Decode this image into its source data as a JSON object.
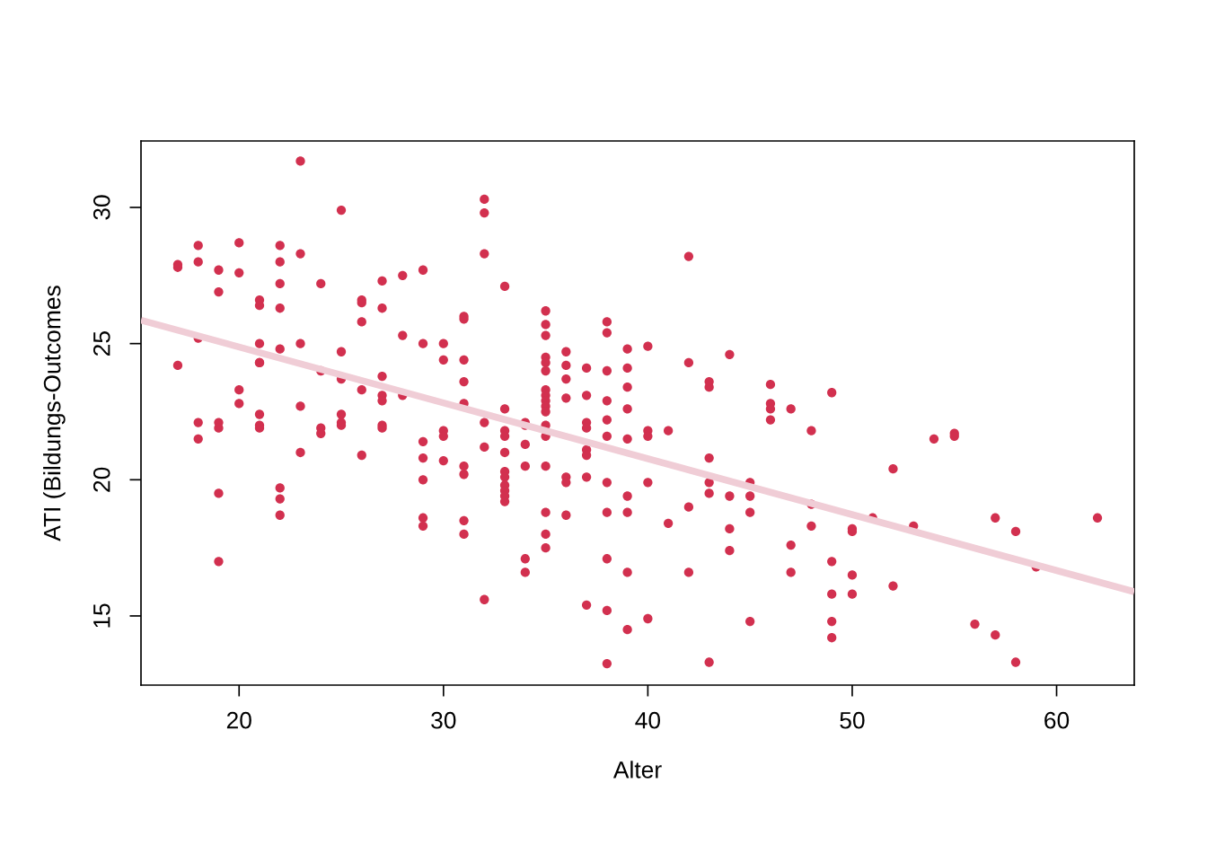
{
  "chart_data": {
    "type": "scatter",
    "xlabel": "Alter",
    "ylabel": "ATI (Bildungs-Outcomes",
    "xlim": [
      15.2,
      63.8
    ],
    "ylim": [
      12.46,
      32.44
    ],
    "xticks": [
      20,
      30,
      40,
      50,
      60
    ],
    "yticks": [
      15,
      20,
      25,
      30
    ],
    "grid": false,
    "marker": "circle",
    "series": [
      {
        "color": "#d2304f",
        "x": [
          17,
          17,
          17,
          18,
          18,
          18,
          18,
          18,
          19,
          19,
          19,
          19,
          19,
          19,
          20,
          20,
          20,
          20,
          21,
          21,
          21,
          21,
          21,
          21,
          21,
          21,
          22,
          22,
          22,
          22,
          22,
          22,
          22,
          22,
          23,
          23,
          23,
          23,
          23,
          24,
          24,
          24,
          24,
          25,
          25,
          25,
          25,
          25,
          25,
          26,
          26,
          26,
          26,
          26,
          27,
          27,
          27,
          27,
          27,
          27,
          27,
          28,
          28,
          28,
          29,
          29,
          29,
          29,
          29,
          29,
          29,
          30,
          30,
          30,
          30,
          30,
          31,
          31,
          31,
          31,
          31,
          31,
          31,
          31,
          31,
          32,
          32,
          32,
          32,
          32,
          32,
          33,
          33,
          33,
          33,
          33,
          33,
          33,
          33,
          33,
          33,
          33,
          34,
          34,
          34,
          34,
          34,
          34,
          35,
          35,
          35,
          35,
          35,
          35,
          35,
          35,
          35,
          35,
          35,
          35,
          35,
          35,
          35,
          35,
          35,
          36,
          36,
          36,
          36,
          36,
          36,
          36,
          37,
          37,
          37,
          37,
          37,
          37,
          37,
          37,
          38,
          38,
          38,
          38,
          38,
          38,
          38,
          38,
          38,
          38,
          38,
          39,
          39,
          39,
          39,
          39,
          39,
          39,
          39,
          39,
          40,
          40,
          40,
          40,
          40,
          41,
          41,
          42,
          42,
          42,
          42,
          43,
          43,
          43,
          43,
          43,
          43,
          44,
          44,
          44,
          44,
          45,
          45,
          45,
          45,
          46,
          46,
          46,
          46,
          47,
          47,
          47,
          48,
          48,
          48,
          49,
          49,
          49,
          49,
          49,
          50,
          50,
          50,
          50,
          51,
          52,
          52,
          53,
          54,
          55,
          55,
          56,
          57,
          57,
          58,
          58,
          59,
          62
        ],
        "values": [
          27.9,
          27.8,
          24.2,
          28.6,
          28.0,
          25.2,
          22.1,
          21.5,
          27.7,
          26.9,
          22.1,
          21.9,
          19.5,
          17.0,
          28.7,
          27.6,
          23.3,
          22.8,
          26.6,
          26.4,
          25.0,
          24.3,
          24.3,
          22.4,
          22.0,
          21.9,
          28.6,
          28.0,
          27.2,
          26.3,
          24.8,
          19.7,
          19.3,
          18.7,
          31.7,
          28.3,
          25.0,
          22.7,
          21.0,
          27.2,
          24.0,
          21.9,
          21.7,
          29.9,
          24.7,
          23.7,
          22.4,
          22.1,
          22.0,
          26.6,
          26.5,
          25.8,
          23.3,
          20.9,
          27.3,
          26.3,
          23.8,
          23.1,
          22.9,
          22.0,
          21.9,
          27.5,
          25.3,
          23.1,
          27.7,
          25.0,
          21.4,
          20.8,
          20.0,
          18.6,
          18.3,
          25.0,
          24.4,
          21.8,
          21.6,
          20.7,
          26.0,
          25.9,
          24.4,
          23.6,
          22.8,
          20.5,
          20.2,
          18.5,
          18.0,
          30.3,
          29.8,
          28.3,
          22.1,
          21.2,
          15.6,
          27.1,
          22.6,
          21.8,
          21.6,
          21.0,
          20.3,
          20.1,
          19.8,
          19.6,
          19.4,
          19.2,
          22.1,
          22.0,
          21.3,
          20.5,
          17.1,
          16.6,
          26.2,
          25.7,
          25.3,
          24.5,
          24.3,
          24.0,
          23.3,
          23.1,
          22.9,
          22.7,
          22.5,
          22.0,
          21.6,
          20.5,
          18.8,
          18.0,
          17.5,
          24.7,
          24.2,
          23.7,
          23.0,
          20.1,
          19.9,
          18.7,
          24.1,
          23.1,
          22.1,
          21.9,
          21.1,
          20.9,
          20.1,
          15.4,
          25.8,
          25.4,
          24.0,
          22.9,
          22.2,
          21.6,
          19.9,
          18.8,
          17.1,
          15.2,
          13.25,
          24.8,
          24.1,
          23.4,
          22.6,
          21.5,
          19.4,
          18.8,
          16.6,
          14.5,
          24.9,
          21.8,
          21.6,
          19.9,
          14.9,
          21.8,
          18.4,
          28.2,
          24.3,
          19.0,
          16.6,
          23.6,
          23.4,
          20.8,
          19.9,
          19.5,
          13.3,
          24.6,
          19.4,
          18.2,
          17.4,
          19.9,
          19.4,
          18.8,
          14.8,
          23.5,
          22.8,
          22.6,
          22.2,
          22.6,
          17.6,
          16.6,
          21.8,
          19.1,
          18.3,
          23.2,
          17.0,
          15.8,
          14.8,
          14.2,
          18.2,
          18.1,
          16.5,
          15.8,
          18.6,
          20.4,
          16.1,
          18.3,
          21.5,
          21.7,
          21.6,
          14.7,
          18.6,
          14.3,
          18.1,
          13.3,
          16.8,
          18.6
        ]
      },
      {
        "type": "line",
        "color": "#f0cdd6",
        "marker": "none",
        "line_style": "solid",
        "x": [
          15.2,
          63.8
        ],
        "values": [
          25.86,
          15.89
        ]
      }
    ]
  }
}
